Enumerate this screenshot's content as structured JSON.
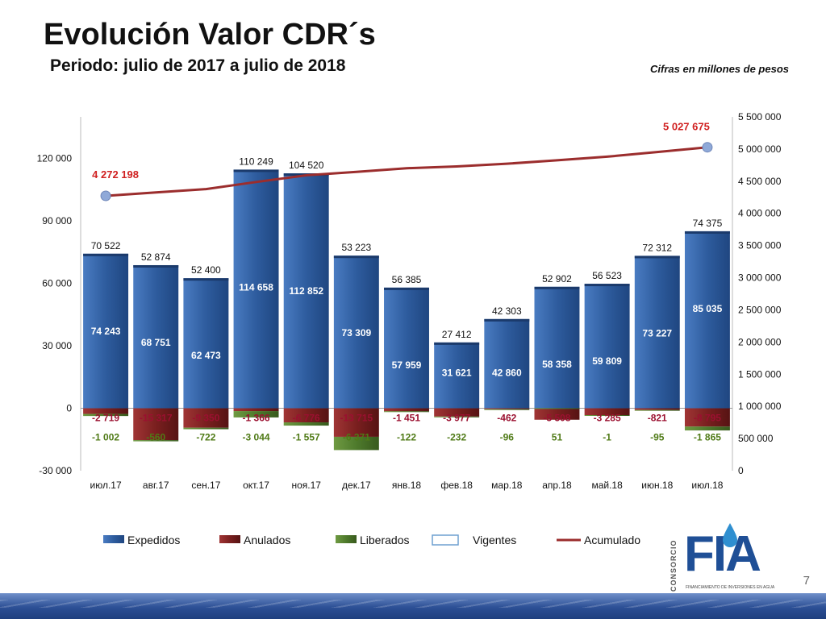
{
  "slide": {
    "title": "Evolución Valor CDR´s",
    "subtitle": "Periodo:  julio de 2017 a julio de 2018",
    "note": "Cifras en millones de pesos",
    "page_number": "7"
  },
  "logo": {
    "vertical_text": "CONSORCIO",
    "letters": "FIA",
    "small_text": "FINANCIAMIENTO DE INVERSIONES EN AGUA",
    "colors": {
      "primary": "#1f4f96",
      "drop": "#2f8fd0"
    }
  },
  "colors": {
    "expedidos": "#2e5c9e",
    "anulados": "#7a1f1f",
    "liberados": "#4e7a2c",
    "vigentes_border": "#6fa0d0",
    "acumulado": "#9b2d2d",
    "acumulado_marker": "#8fa9d8",
    "expedidos_text": "#ffffff",
    "anulados_text": "#9b1030",
    "liberados_text": "#4f7a16",
    "acumulado_text": "#d02020"
  },
  "chart_data": {
    "type": "bar",
    "categories": [
      "июл.17",
      "авг.17",
      "сен.17",
      "окт.17",
      "ноя.17",
      "дек.17",
      "янв.18",
      "фев.18",
      "мар.18",
      "апр.18",
      "май.18",
      "июн.18",
      "июл.18"
    ],
    "left_axis": {
      "ticks": [
        "-30 000",
        "0",
        "30 000",
        "60 000",
        "90 000",
        "120 000"
      ],
      "tick_values": [
        -30000,
        0,
        30000,
        60000,
        90000,
        120000
      ],
      "ylim": [
        -30000,
        140000
      ]
    },
    "right_axis": {
      "ticks": [
        "0",
        "500 000",
        "1 000 000",
        "1 500 000",
        "2 000 000",
        "2 500 000",
        "3 000 000",
        "3 500 000",
        "4 000 000",
        "4 500 000",
        "5 000 000",
        "5 500 000"
      ],
      "tick_values": [
        0,
        500000,
        1000000,
        1500000,
        2000000,
        2500000,
        3000000,
        3500000,
        4000000,
        4500000,
        5000000,
        5500000
      ],
      "ylim": [
        0,
        5500000
      ]
    },
    "legend": {
      "position": "bottom",
      "entries": [
        "Expedidos",
        "Anulados",
        "Liberados",
        "Vigentes",
        "Acumulado"
      ]
    },
    "series": [
      {
        "name": "Expedidos",
        "values": [
          74243,
          68751,
          62473,
          114658,
          112852,
          73309,
          57959,
          31621,
          42860,
          58358,
          59809,
          73227,
          85035
        ],
        "labels": [
          "74 243",
          "68 751",
          "62 473",
          "114 658",
          "112 852",
          "73 309",
          "57 959",
          "31 621",
          "42 860",
          "58 358",
          "59 809",
          "73 227",
          "85 035"
        ]
      },
      {
        "name": "Anulados",
        "values": [
          -2719,
          -15317,
          -9350,
          -1366,
          -6776,
          -13715,
          -1451,
          -3977,
          -462,
          -5508,
          -3285,
          -821,
          -8795
        ],
        "labels": [
          "-2 719",
          "-15 317",
          "-9 350",
          "-1 366",
          "-6 776",
          "-13 715",
          "-1 451",
          "-3 977",
          "-462",
          "-5 508",
          "-3 285",
          "-821",
          "-8 795"
        ]
      },
      {
        "name": "Liberados",
        "values": [
          -1002,
          -560,
          -722,
          -3044,
          -1557,
          -6371,
          -122,
          -232,
          -96,
          51,
          -1,
          -95,
          -1865
        ],
        "labels": [
          "-1 002",
          "-560",
          "-722",
          "-3 044",
          "-1 557",
          "-6 371",
          "-122",
          "-232",
          "-96",
          "51",
          "-1",
          "-95",
          "-1 865"
        ]
      },
      {
        "name": "Vigentes",
        "values": [
          70522,
          52874,
          52400,
          110249,
          104520,
          53223,
          56385,
          27412,
          42303,
          52902,
          56523,
          72312,
          74375
        ],
        "labels": [
          "70 522",
          "52 874",
          "52 400",
          "110 249",
          "104 520",
          "53 223",
          "56 385",
          "27 412",
          "42 303",
          "52 902",
          "56 523",
          "72 312",
          "74 375"
        ]
      },
      {
        "name": "Acumulado",
        "axis": "right",
        "values": [
          4272198,
          4325072,
          4377472,
          4487721,
          4592241,
          4645464,
          4701849,
          4729261,
          4771564,
          4824466,
          4880989,
          4953301,
          5027675
        ],
        "labels": [
          "4 272 198",
          "",
          "",
          "",
          "",
          "",
          "",
          "",
          "",
          "",
          "",
          "",
          "5 027 675"
        ]
      }
    ]
  }
}
